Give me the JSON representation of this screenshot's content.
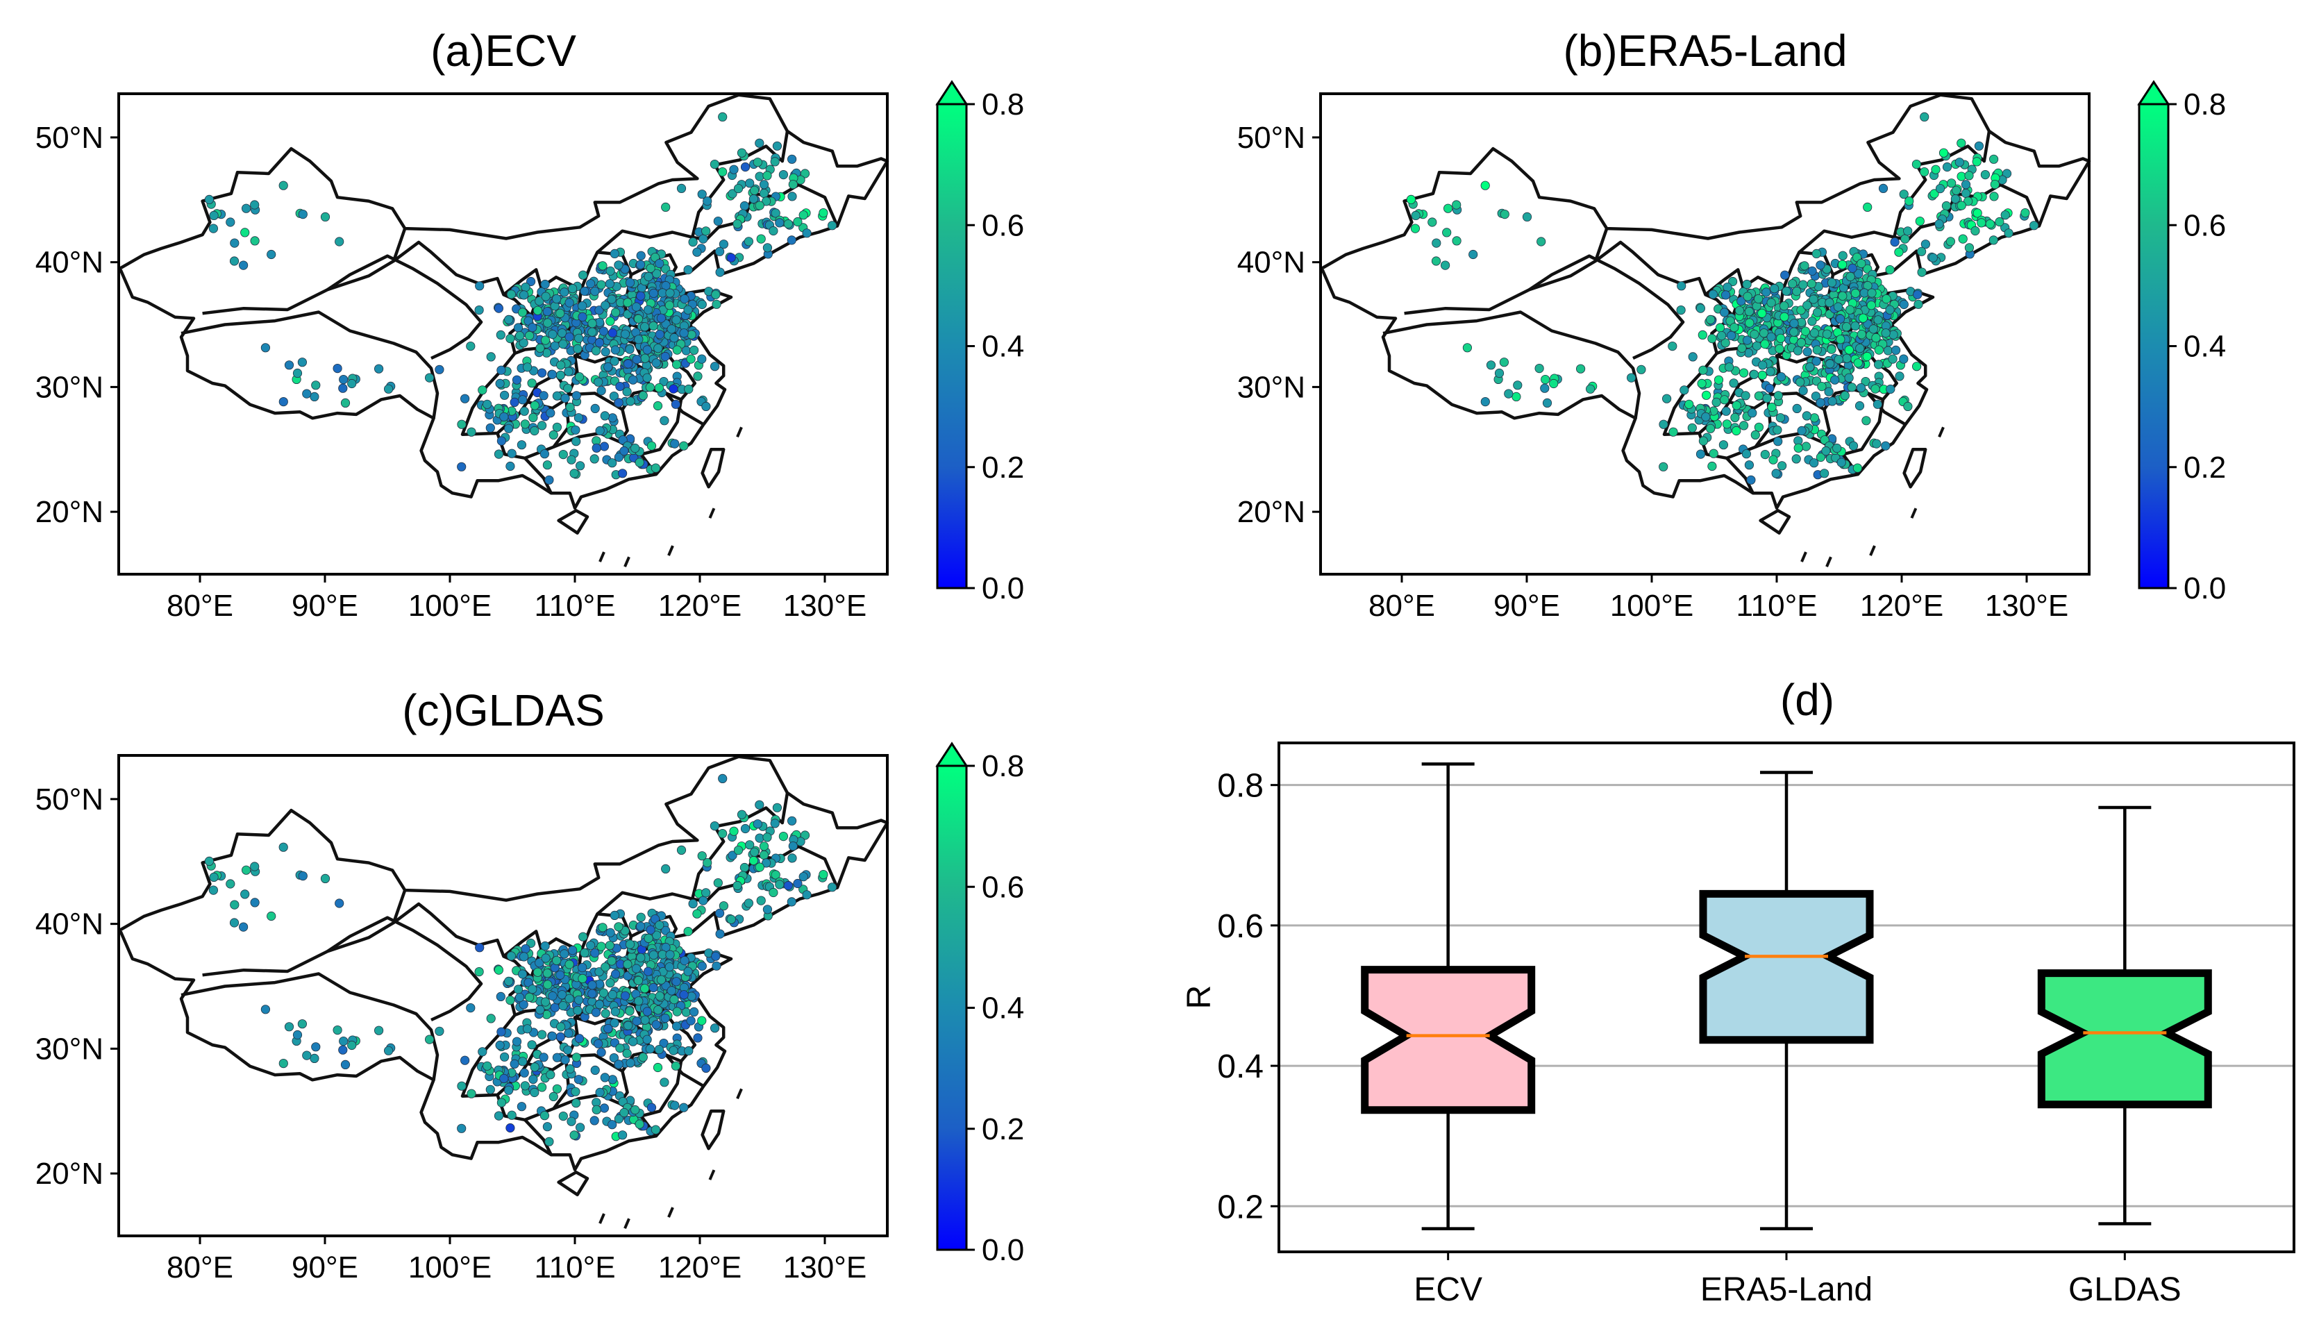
{
  "figure": {
    "colormap": {
      "stops": [
        "#0000ff",
        "#1c5fc6",
        "#1c8cb0",
        "#1fb98d",
        "#00ff7f"
      ]
    },
    "box_colors": [
      "#ffc0cb",
      "#add8e6",
      "#3ce882"
    ]
  },
  "chart_data": [
    {
      "type": "scatter",
      "panel": "a",
      "title": "(a)ECV",
      "x_ticks": [
        "80°E",
        "90°E",
        "100°E",
        "110°E",
        "120°E",
        "130°E"
      ],
      "y_ticks": [
        "50°N",
        "40°N",
        "30°N",
        "20°N"
      ],
      "xlim": [
        73.5,
        135
      ],
      "ylim": [
        15,
        53.5
      ],
      "colorbar": {
        "ticks": [
          "0.8",
          "0.6",
          "0.4",
          "0.2",
          "0.0"
        ],
        "range": [
          0,
          0.8
        ],
        "extend": "max"
      },
      "points_description_mean_R": 0.44,
      "seed": 11
    },
    {
      "type": "scatter",
      "panel": "b",
      "title": "(b)ERA5-Land",
      "x_ticks": [
        "80°E",
        "90°E",
        "100°E",
        "110°E",
        "120°E",
        "130°E"
      ],
      "y_ticks": [
        "50°N",
        "40°N",
        "30°N",
        "20°N"
      ],
      "xlim": [
        73.5,
        135
      ],
      "ylim": [
        15,
        53.5
      ],
      "colorbar": {
        "ticks": [
          "0.8",
          "0.6",
          "0.4",
          "0.2",
          "0.0"
        ],
        "range": [
          0,
          0.8
        ],
        "extend": "max"
      },
      "points_description_mean_R": 0.55,
      "seed": 23
    },
    {
      "type": "scatter",
      "panel": "c",
      "title": "(c)GLDAS",
      "x_ticks": [
        "80°E",
        "90°E",
        "100°E",
        "110°E",
        "120°E",
        "130°E"
      ],
      "y_ticks": [
        "50°N",
        "40°N",
        "30°N",
        "20°N"
      ],
      "xlim": [
        73.5,
        135
      ],
      "ylim": [
        15,
        53.5
      ],
      "colorbar": {
        "ticks": [
          "0.8",
          "0.6",
          "0.4",
          "0.2",
          "0.0"
        ],
        "range": [
          0,
          0.8
        ],
        "extend": "max"
      },
      "points_description_mean_R": 0.45,
      "seed": 37
    },
    {
      "type": "box",
      "panel": "d",
      "title": "(d)",
      "ylabel": "R",
      "ylim": [
        0.135,
        0.86
      ],
      "y_ticks": [
        "0.8",
        "0.6",
        "0.4",
        "0.2"
      ],
      "grid": "horizontal",
      "categories": [
        "ECV",
        "ERA5-Land",
        "GLDAS"
      ],
      "boxes": [
        {
          "name": "ECV",
          "whisker_low": 0.168,
          "q1": 0.337,
          "median": 0.443,
          "q3": 0.537,
          "whisker_high": 0.83,
          "notch": [
            0.408,
            0.478
          ]
        },
        {
          "name": "ERA5-Land",
          "whisker_low": 0.168,
          "q1": 0.437,
          "median": 0.556,
          "q3": 0.645,
          "whisker_high": 0.818,
          "notch": [
            0.526,
            0.586
          ]
        },
        {
          "name": "GLDAS",
          "whisker_low": 0.175,
          "q1": 0.345,
          "median": 0.447,
          "q3": 0.532,
          "whisker_high": 0.768,
          "notch": [
            0.417,
            0.477
          ]
        }
      ]
    }
  ]
}
